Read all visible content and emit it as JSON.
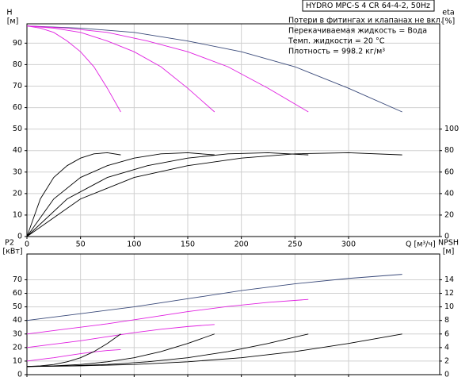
{
  "chart_data": [
    {
      "type": "line",
      "title": "HYDRO MPC-S 4 CR 64-4-2, 50Hz",
      "notes": [
        "Потери в фитингах и клапанах не вкл.",
        "Перекачиваемая жидкость = Вода",
        "Темп. жидкости = 20 °C",
        "Плотность = 998.2 кг/м³"
      ],
      "y_label": "H",
      "y_unit": "[м]",
      "y2_label": "eta",
      "y2_unit": "[%]",
      "x_label": "Q [м³/ч]",
      "xlim": [
        0,
        385
      ],
      "xticks": [
        0,
        50,
        100,
        150,
        200,
        250,
        300
      ],
      "ylim": [
        0,
        99
      ],
      "yticks": [
        0,
        10,
        20,
        30,
        40,
        50,
        60,
        70,
        80,
        90
      ],
      "y2lim": [
        0,
        198
      ],
      "y2ticks": [
        0,
        20,
        40,
        60,
        80,
        100
      ],
      "grid": true,
      "series": [
        {
          "color": "#3a4a7a",
          "x": [
            0,
            50,
            100,
            150,
            200,
            250,
            300,
            350
          ],
          "values": [
            98,
            97,
            95,
            91,
            86,
            79,
            69,
            58
          ]
        },
        {
          "color": "#e020e0",
          "x": [
            0,
            37.5,
            75,
            112.5,
            150,
            187.5,
            225,
            262.5
          ],
          "values": [
            98,
            97,
            95,
            91,
            86,
            79,
            69,
            58
          ]
        },
        {
          "color": "#e020e0",
          "x": [
            0,
            25,
            50,
            75,
            100,
            125,
            150,
            175
          ],
          "values": [
            98,
            97,
            95,
            91,
            86,
            79,
            69,
            58
          ]
        },
        {
          "color": "#e020e0",
          "x": [
            0,
            12.5,
            25,
            37.5,
            50,
            62.5,
            75,
            87.5
          ],
          "values": [
            98,
            97,
            95,
            91,
            86,
            79,
            69,
            58
          ]
        },
        {
          "color": "#000000",
          "axis": "y2",
          "x": [
            0,
            50,
            100,
            150,
            200,
            250,
            300,
            350
          ],
          "values": [
            0,
            35,
            55,
            66,
            73,
            77,
            78,
            76
          ]
        },
        {
          "color": "#000000",
          "axis": "y2",
          "x": [
            0,
            37.5,
            75,
            112.5,
            150,
            187.5,
            225,
            262.5
          ],
          "values": [
            0,
            35,
            55,
            66,
            73,
            77,
            78,
            76
          ]
        },
        {
          "color": "#000000",
          "axis": "y2",
          "x": [
            0,
            25,
            50,
            75,
            100,
            125,
            150,
            175
          ],
          "values": [
            0,
            35,
            55,
            66,
            73,
            77,
            78,
            76
          ]
        },
        {
          "color": "#000000",
          "axis": "y2",
          "x": [
            0,
            12.5,
            25,
            37.5,
            50,
            62.5,
            75,
            87.5
          ],
          "values": [
            0,
            35,
            55,
            66,
            73,
            77,
            78,
            76
          ]
        }
      ]
    },
    {
      "type": "line",
      "y_label": "P2",
      "y_unit": "[кВт]",
      "y2_label": "NPSH",
      "y2_unit": "[м]",
      "xlim": [
        0,
        385
      ],
      "xticks": [
        0,
        50,
        100,
        150,
        200,
        250,
        300
      ],
      "ylim": [
        0,
        89
      ],
      "yticks": [
        0,
        10,
        20,
        30,
        40,
        50,
        60,
        70
      ],
      "y2lim": [
        0,
        17.8
      ],
      "y2ticks": [
        0,
        2,
        4,
        6,
        8,
        10,
        12,
        14
      ],
      "grid": true,
      "series": [
        {
          "color": "#3a4a7a",
          "x": [
            0,
            50,
            100,
            150,
            200,
            250,
            300,
            350
          ],
          "values": [
            40,
            45,
            50,
            56,
            62,
            67,
            71,
            74
          ]
        },
        {
          "color": "#e020e0",
          "x": [
            0,
            37.5,
            75,
            112.5,
            150,
            187.5,
            225,
            262.5
          ],
          "values": [
            30,
            33.8,
            37.5,
            42,
            46.5,
            50.3,
            53.3,
            55.5
          ]
        },
        {
          "color": "#e020e0",
          "x": [
            0,
            25,
            50,
            75,
            100,
            125,
            150,
            175
          ],
          "values": [
            20,
            22.5,
            25,
            28,
            31,
            33.5,
            35.5,
            37
          ]
        },
        {
          "color": "#e020e0",
          "x": [
            0,
            12.5,
            25,
            37.5,
            50,
            62.5,
            75,
            87.5
          ],
          "values": [
            10,
            11.3,
            12.5,
            14,
            15.5,
            16.8,
            17.8,
            18.5
          ]
        },
        {
          "color": "#000000",
          "axis": "y2",
          "x": [
            0,
            50,
            100,
            150,
            200,
            250,
            300,
            350
          ],
          "values": [
            1.2,
            1.3,
            1.5,
            1.9,
            2.5,
            3.4,
            4.6,
            6
          ]
        },
        {
          "color": "#000000",
          "axis": "y2",
          "x": [
            0,
            37.5,
            75,
            112.5,
            150,
            187.5,
            225,
            262.5
          ],
          "values": [
            1.2,
            1.3,
            1.5,
            1.9,
            2.5,
            3.4,
            4.6,
            6
          ]
        },
        {
          "color": "#000000",
          "axis": "y2",
          "x": [
            0,
            25,
            50,
            75,
            100,
            125,
            150,
            175
          ],
          "values": [
            1.2,
            1.3,
            1.5,
            1.9,
            2.5,
            3.4,
            4.6,
            6
          ]
        },
        {
          "color": "#000000",
          "axis": "y2",
          "x": [
            0,
            12.5,
            25,
            37.5,
            50,
            62.5,
            75,
            87.5
          ],
          "values": [
            1.2,
            1.3,
            1.5,
            1.9,
            2.5,
            3.4,
            4.6,
            6
          ]
        }
      ]
    }
  ]
}
